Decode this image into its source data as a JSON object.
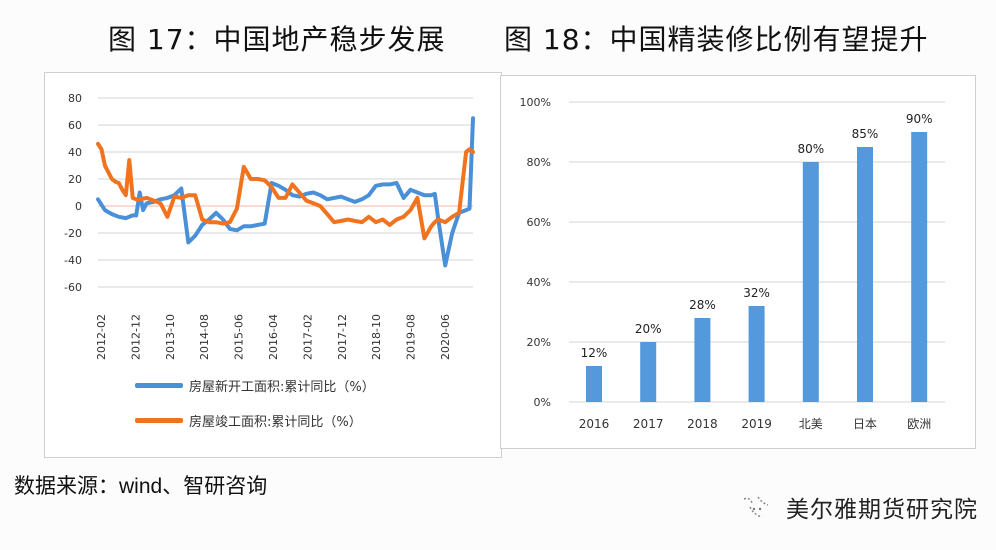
{
  "titles": {
    "left": "图 17：中国地产稳步发展",
    "right": "图 18：中国精装修比例有望提升"
  },
  "footer": {
    "source": "数据来源：wind、智研咨询",
    "brand": "美尔雅期货研究院",
    "brand_icon": "wechat-like-logo-icon"
  },
  "colors": {
    "blue": "#4a90d9",
    "orange": "#f07320",
    "grid": "#d4d4d4",
    "bar": "#5599dd"
  },
  "chart_data": [
    {
      "type": "line",
      "title": "图 17：中国地产稳步发展",
      "xlabel": "",
      "ylabel": "",
      "ylim": [
        -60,
        80
      ],
      "yticks": [
        "80",
        "60",
        "40",
        "20",
        "0",
        "-20",
        "-40",
        "-60"
      ],
      "xticks": [
        "2012-02",
        "2012-12",
        "2013-10",
        "2014-08",
        "2015-06",
        "2016-04",
        "2017-02",
        "2017-12",
        "2018-10",
        "2019-08",
        "2020-06"
      ],
      "grid": true,
      "legend_position": "bottom",
      "series": [
        {
          "name": "房屋新开工面积:累计同比（%）",
          "color": "#4a90d9",
          "x_index": [
            0,
            2,
            4,
            6,
            8,
            10,
            11,
            12,
            13,
            14,
            16,
            18,
            20,
            22,
            24,
            26,
            28,
            30,
            32,
            34,
            36,
            38,
            40,
            42,
            44,
            46,
            48,
            50,
            52,
            54,
            56,
            58,
            60,
            62,
            64,
            66,
            68,
            70,
            72,
            74,
            76,
            78,
            80,
            82,
            84,
            86,
            88,
            90,
            92,
            94,
            96,
            97,
            98,
            100,
            102,
            104,
            106,
            107,
            108
          ],
          "values": [
            5,
            -3,
            -6,
            -8,
            -9,
            -7,
            -7,
            10,
            -3,
            2,
            3,
            5,
            6,
            8,
            13,
            -27,
            -22,
            -14,
            -10,
            -5,
            -10,
            -17,
            -18,
            -15,
            -15,
            -14,
            -13,
            17,
            15,
            12,
            8,
            7,
            9,
            10,
            8,
            5,
            6,
            7,
            5,
            3,
            5,
            8,
            15,
            16,
            16,
            17,
            6,
            12,
            10,
            8,
            8,
            9,
            -10,
            -44,
            -20,
            -5,
            -3,
            -2,
            65
          ]
        },
        {
          "name": "房屋竣工面积:累计同比（%）",
          "color": "#f07320",
          "x_index": [
            0,
            1,
            2,
            3,
            4,
            5,
            6,
            7,
            8,
            9,
            10,
            11,
            12,
            14,
            16,
            18,
            20,
            22,
            24,
            26,
            28,
            30,
            32,
            34,
            36,
            38,
            40,
            42,
            44,
            46,
            48,
            50,
            52,
            54,
            56,
            58,
            60,
            62,
            64,
            66,
            68,
            70,
            72,
            74,
            76,
            78,
            80,
            82,
            84,
            86,
            88,
            90,
            92,
            94,
            96,
            97,
            98,
            100,
            102,
            104,
            106,
            107,
            108
          ],
          "values": [
            46,
            42,
            30,
            25,
            20,
            18,
            17,
            12,
            8,
            34,
            6,
            5,
            5,
            6,
            4,
            2,
            -8,
            7,
            6,
            8,
            8,
            -10,
            -12,
            -12,
            -13,
            -12,
            -2,
            29,
            20,
            20,
            19,
            14,
            6,
            6,
            16,
            10,
            4,
            2,
            0,
            -6,
            -12,
            -11,
            -10,
            -11,
            -12,
            -8,
            -12,
            -10,
            -14,
            -10,
            -8,
            -3,
            6,
            -24,
            -15,
            -12,
            -10,
            -12,
            -8,
            -5,
            40,
            42,
            40
          ]
        }
      ]
    },
    {
      "type": "bar",
      "title": "图 18：中国精装修比例有望提升",
      "categories": [
        "2016",
        "2017",
        "2018",
        "2019",
        "北美",
        "日本",
        "欧洲"
      ],
      "values": [
        12,
        20,
        28,
        32,
        80,
        85,
        90
      ],
      "data_labels": [
        "12%",
        "20%",
        "28%",
        "32%",
        "80%",
        "85%",
        "90%"
      ],
      "xlabel": "",
      "ylabel": "",
      "ylim": [
        0,
        100
      ],
      "yticks": [
        "100%",
        "80%",
        "60%",
        "40%",
        "20%",
        "0%"
      ],
      "grid": true,
      "color": "#5599dd"
    }
  ]
}
